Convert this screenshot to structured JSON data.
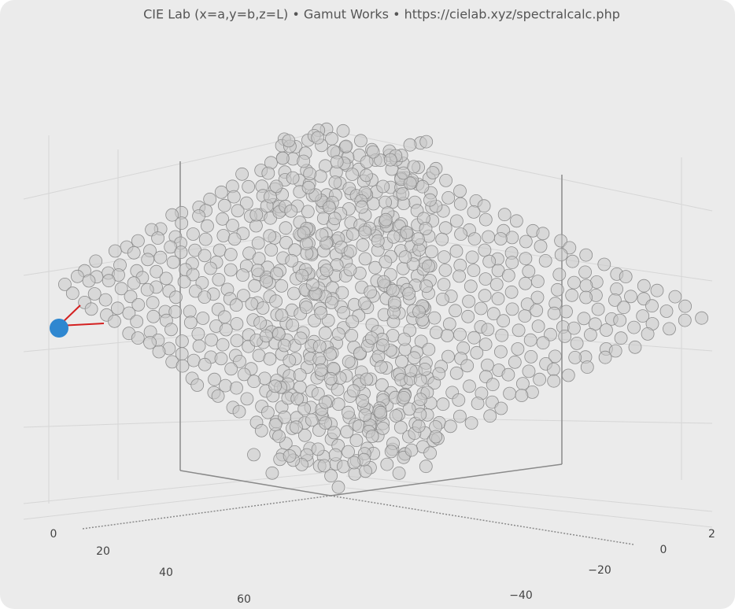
{
  "header": {
    "title": "CIE Lab (x=a,y=b,z=L)  •  Gamut Works  •  https://cielab.xyz/spectralcalc.php"
  },
  "axes": {
    "left": {
      "ticks": [
        "0",
        "20",
        "40",
        "60"
      ]
    },
    "right": {
      "ticks": [
        "0",
        "−20",
        "−40",
        "2"
      ]
    }
  }
}
